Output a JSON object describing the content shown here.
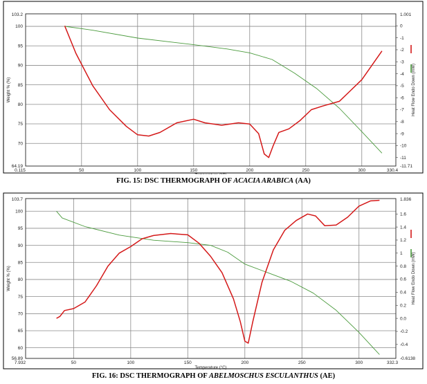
{
  "chart_data": [
    {
      "type": "line",
      "caption": {
        "prefix": "FIG. 15: DSC THERMOGRAPH  OF ",
        "italic": "ACACIA ARABICA",
        "suffix": " (AA)"
      },
      "xlabel": "Temperature (°C)",
      "ylabel_left": "Weight % (%)",
      "ylabel_right": "Heat Flow Endo Down (mW)",
      "xlim": [
        0.115,
        330.4
      ],
      "xlim_labels": [
        "0.115",
        "330.4"
      ],
      "xticks": [
        50,
        100,
        150,
        200,
        250,
        300
      ],
      "ylim_left": [
        64.19,
        103.2
      ],
      "ylim_left_labels": [
        "64.19",
        "103.2"
      ],
      "yticks_left": [
        70,
        75,
        80,
        85,
        90,
        95,
        100
      ],
      "ylim_right": [
        -11.71,
        1.001
      ],
      "ylim_right_labels": [
        "-11.71",
        "1.001"
      ],
      "yticks_right": [
        0,
        -1,
        -2,
        -3,
        -4,
        -5,
        -6,
        -7,
        -8,
        -9,
        -10,
        -11
      ],
      "grid": true,
      "series": [
        {
          "axis": "left",
          "color": "#4a9a3c",
          "x": [
            35,
            60,
            100,
            150,
            180,
            200,
            220,
            240,
            260,
            280,
            300,
            318
          ],
          "y": [
            100,
            99,
            97,
            95.3,
            94.2,
            93.2,
            91.5,
            88,
            84,
            79,
            73,
            67.5
          ]
        },
        {
          "axis": "right",
          "color": "#d41818",
          "x": [
            35,
            45,
            60,
            75,
            90,
            100,
            110,
            120,
            135,
            150,
            160,
            175,
            190,
            200,
            208,
            213,
            217,
            221,
            226,
            235,
            245,
            255,
            265,
            280,
            300,
            318
          ],
          "y": [
            0,
            -2.3,
            -5,
            -7,
            -8.4,
            -9.1,
            -9.2,
            -8.9,
            -8.1,
            -7.8,
            -8.1,
            -8.3,
            -8.1,
            -8.2,
            -9,
            -10.7,
            -11,
            -10,
            -8.9,
            -8.6,
            -7.9,
            -7,
            -6.7,
            -6.3,
            -4.5,
            -2.1
          ]
        }
      ]
    },
    {
      "type": "line",
      "caption": {
        "prefix": "FIG. 16: DSC THERMOGRAPH  OF ",
        "italic": "ABELMOSCHUS ESCULANTHUS",
        "suffix": "  (AE)"
      },
      "xlabel": "Temperature (°C)",
      "ylabel_left": "Weight % (%)",
      "ylabel_right": "Heat Flow Endo Down (mW)",
      "xlim": [
        7.932,
        332.3
      ],
      "xlim_labels": [
        "7.932",
        "332.3"
      ],
      "xticks": [
        50,
        100,
        150,
        200,
        250,
        300
      ],
      "ylim_left": [
        56.89,
        103.7
      ],
      "ylim_left_labels": [
        "56.89",
        "103.7"
      ],
      "yticks_left": [
        60,
        65,
        70,
        75,
        80,
        85,
        90,
        95,
        100
      ],
      "ylim_right": [
        -0.6138,
        1.836
      ],
      "ylim_right_labels": [
        "-0.6138",
        "1.836"
      ],
      "yticks_right": [
        -0.4,
        -0.2,
        0.0,
        0.2,
        0.4,
        0.6,
        0.8,
        1.0,
        1.2,
        1.4,
        1.6
      ],
      "grid": true,
      "series": [
        {
          "axis": "left",
          "color": "#4a9a3c",
          "x": [
            35,
            40,
            60,
            90,
            120,
            150,
            170,
            185,
            200,
            220,
            240,
            260,
            280,
            300,
            318
          ],
          "y": [
            100,
            98,
            95.5,
            93,
            91.5,
            90.8,
            90,
            88,
            84.5,
            82,
            79.5,
            76,
            71,
            64.5,
            58
          ]
        },
        {
          "axis": "right",
          "color": "#d41818",
          "x": [
            35,
            38,
            42,
            50,
            60,
            70,
            80,
            90,
            100,
            110,
            120,
            135,
            150,
            160,
            170,
            180,
            190,
            196,
            200,
            203,
            207,
            215,
            225,
            235,
            245,
            255,
            262,
            270,
            280,
            290,
            300,
            310,
            318
          ],
          "y": [
            0.0,
            0.03,
            0.12,
            0.15,
            0.25,
            0.5,
            0.8,
            1.0,
            1.1,
            1.22,
            1.27,
            1.3,
            1.28,
            1.15,
            0.95,
            0.7,
            0.3,
            -0.05,
            -0.35,
            -0.38,
            -0.05,
            0.55,
            1.05,
            1.35,
            1.5,
            1.6,
            1.57,
            1.42,
            1.43,
            1.55,
            1.72,
            1.8,
            1.81
          ]
        }
      ]
    }
  ]
}
